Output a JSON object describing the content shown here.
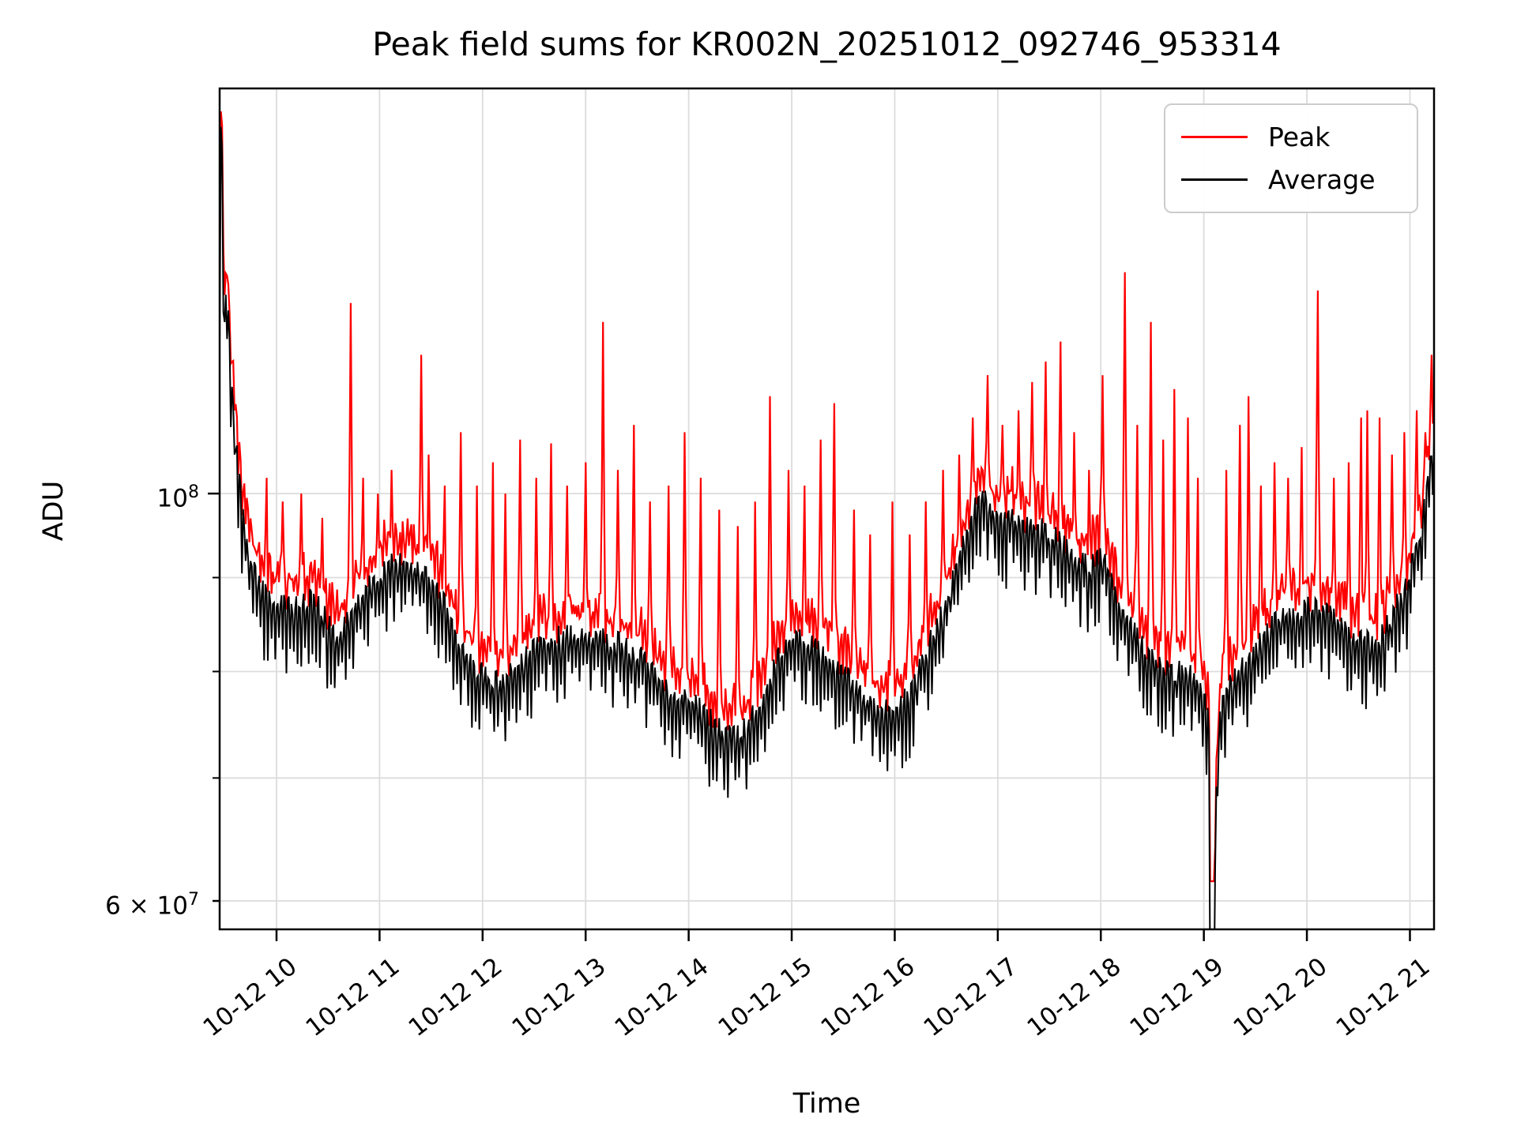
{
  "title": "Peak field sums for KR002N_20251012_092746_953314",
  "axes": {
    "xlabel": "Time",
    "ylabel": "ADU",
    "x_ticks": [
      {
        "value": 10,
        "label": "10-12 10"
      },
      {
        "value": 11,
        "label": "10-12 11"
      },
      {
        "value": 12,
        "label": "10-12 12"
      },
      {
        "value": 13,
        "label": "10-12 13"
      },
      {
        "value": 14,
        "label": "10-12 14"
      },
      {
        "value": 15,
        "label": "10-12 15"
      },
      {
        "value": 16,
        "label": "10-12 16"
      },
      {
        "value": 17,
        "label": "10-12 17"
      },
      {
        "value": 18,
        "label": "10-12 18"
      },
      {
        "value": 19,
        "label": "10-12 19"
      },
      {
        "value": 20,
        "label": "10-12 20"
      },
      {
        "value": 21,
        "label": "10-12 21"
      }
    ],
    "y_ticks": [
      {
        "value": 100000000,
        "base": "10",
        "exp": "8",
        "major": true
      },
      {
        "value": 60000000,
        "base": "6 × 10",
        "exp": "7",
        "major": false
      }
    ],
    "y_gridlines_adu": [
      100000000,
      90000000,
      80000000,
      70000000,
      60000000
    ],
    "y_minor_tick_values": [
      90000000,
      80000000,
      70000000,
      60000000
    ],
    "grid_color": "#dcdcdc",
    "spine_color": "#000000"
  },
  "legend": {
    "position": "upper right",
    "entries": [
      {
        "label": "Peak",
        "color": "#ff0000"
      },
      {
        "label": "Average",
        "color": "#000000"
      }
    ]
  },
  "chart_data": {
    "type": "line",
    "title": "Peak field sums for KR002N_20251012_092746_953314",
    "xlabel": "Time",
    "ylabel": "ADU",
    "y_scale": "log",
    "x_unit": "hours of day on 10-12",
    "x_range_hours": [
      9.448,
      21.234
    ],
    "y_range_adu": [
      57900000,
      166200000
    ],
    "series_names": [
      "Peak",
      "Average"
    ],
    "average_baseline_e7": [
      [
        9.448,
        13.2
      ],
      [
        9.465,
        17.0
      ],
      [
        9.49,
        12.5
      ],
      [
        9.52,
        13.4
      ],
      [
        9.555,
        12.0
      ],
      [
        9.6,
        10.9
      ],
      [
        9.66,
        10.0
      ],
      [
        9.73,
        9.4
      ],
      [
        9.82,
        9.05
      ],
      [
        9.95,
        8.85
      ],
      [
        10.1,
        8.8
      ],
      [
        10.25,
        8.85
      ],
      [
        10.4,
        8.9
      ],
      [
        10.5,
        8.6
      ],
      [
        10.6,
        8.5
      ],
      [
        10.72,
        8.7
      ],
      [
        10.85,
        8.95
      ],
      [
        11.0,
        9.2
      ],
      [
        11.15,
        9.3
      ],
      [
        11.3,
        9.25
      ],
      [
        11.45,
        9.15
      ],
      [
        11.6,
        8.9
      ],
      [
        11.75,
        8.5
      ],
      [
        11.9,
        8.2
      ],
      [
        12.05,
        8.05
      ],
      [
        12.2,
        8.0
      ],
      [
        12.35,
        8.2
      ],
      [
        12.5,
        8.35
      ],
      [
        12.65,
        8.45
      ],
      [
        12.8,
        8.5
      ],
      [
        13.0,
        8.5
      ],
      [
        13.2,
        8.45
      ],
      [
        13.35,
        8.4
      ],
      [
        13.5,
        8.3
      ],
      [
        13.65,
        8.15
      ],
      [
        13.8,
        7.95
      ],
      [
        13.95,
        7.9
      ],
      [
        14.1,
        7.75
      ],
      [
        14.25,
        7.6
      ],
      [
        14.4,
        7.5
      ],
      [
        14.55,
        7.55
      ],
      [
        14.7,
        7.8
      ],
      [
        14.85,
        8.2
      ],
      [
        15.0,
        8.5
      ],
      [
        15.1,
        8.45
      ],
      [
        15.25,
        8.35
      ],
      [
        15.4,
        8.2
      ],
      [
        15.55,
        8.05
      ],
      [
        15.7,
        7.9
      ],
      [
        15.85,
        7.75
      ],
      [
        16.0,
        7.75
      ],
      [
        16.15,
        7.9
      ],
      [
        16.3,
        8.3
      ],
      [
        16.45,
        8.7
      ],
      [
        16.6,
        9.2
      ],
      [
        16.75,
        9.9
      ],
      [
        16.85,
        10.1
      ],
      [
        16.95,
        9.9
      ],
      [
        17.05,
        9.75
      ],
      [
        17.15,
        9.9
      ],
      [
        17.3,
        9.7
      ],
      [
        17.45,
        9.7
      ],
      [
        17.6,
        9.55
      ],
      [
        17.75,
        9.35
      ],
      [
        17.9,
        9.25
      ],
      [
        18.0,
        9.4
      ],
      [
        18.1,
        9.1
      ],
      [
        18.25,
        8.7
      ],
      [
        18.4,
        8.4
      ],
      [
        18.55,
        8.2
      ],
      [
        18.7,
        8.1
      ],
      [
        18.8,
        8.2
      ],
      [
        18.9,
        8.05
      ],
      [
        19.0,
        7.9
      ],
      [
        19.05,
        7.6
      ],
      [
        19.065,
        5.3
      ],
      [
        19.09,
        5.2
      ],
      [
        19.12,
        6.9
      ],
      [
        19.16,
        7.8
      ],
      [
        19.3,
        8.05
      ],
      [
        19.45,
        8.25
      ],
      [
        19.6,
        8.5
      ],
      [
        19.75,
        8.7
      ],
      [
        19.9,
        8.75
      ],
      [
        20.05,
        8.8
      ],
      [
        20.2,
        8.75
      ],
      [
        20.35,
        8.55
      ],
      [
        20.5,
        8.45
      ],
      [
        20.65,
        8.4
      ],
      [
        20.8,
        8.65
      ],
      [
        20.95,
        9.0
      ],
      [
        21.05,
        9.4
      ],
      [
        21.12,
        9.8
      ],
      [
        21.18,
        10.3
      ],
      [
        21.22,
        10.9
      ]
    ],
    "peak_spikes_e7": [
      [
        9.9,
        10.2
      ],
      [
        10.06,
        9.9
      ],
      [
        10.24,
        10.0
      ],
      [
        10.45,
        9.7
      ],
      [
        10.72,
        12.7
      ],
      [
        10.84,
        10.2
      ],
      [
        10.98,
        10.0
      ],
      [
        11.12,
        10.3
      ],
      [
        11.4,
        11.9
      ],
      [
        11.48,
        10.5
      ],
      [
        11.63,
        10.1
      ],
      [
        11.79,
        10.8
      ],
      [
        11.95,
        10.1
      ],
      [
        12.1,
        10.4
      ],
      [
        12.22,
        10.0
      ],
      [
        12.36,
        10.7
      ],
      [
        12.52,
        10.2
      ],
      [
        12.67,
        10.65
      ],
      [
        12.82,
        10.1
      ],
      [
        13.0,
        10.4
      ],
      [
        13.17,
        12.4
      ],
      [
        13.31,
        10.3
      ],
      [
        13.47,
        10.9
      ],
      [
        13.62,
        9.9
      ],
      [
        13.8,
        10.1
      ],
      [
        13.96,
        10.8
      ],
      [
        14.12,
        10.2
      ],
      [
        14.3,
        9.8
      ],
      [
        14.48,
        9.6
      ],
      [
        14.65,
        9.9
      ],
      [
        14.79,
        11.3
      ],
      [
        14.97,
        10.3
      ],
      [
        15.13,
        10.1
      ],
      [
        15.28,
        10.7
      ],
      [
        15.41,
        11.2
      ],
      [
        15.6,
        9.8
      ],
      [
        15.76,
        9.5
      ],
      [
        15.98,
        9.9
      ],
      [
        16.14,
        9.5
      ],
      [
        16.3,
        9.9
      ],
      [
        16.47,
        10.3
      ],
      [
        16.62,
        10.5
      ],
      [
        16.76,
        11.0
      ],
      [
        16.9,
        11.6
      ],
      [
        17.05,
        10.9
      ],
      [
        17.2,
        11.1
      ],
      [
        17.33,
        11.5
      ],
      [
        17.46,
        11.8
      ],
      [
        17.61,
        12.1
      ],
      [
        17.74,
        10.8
      ],
      [
        17.88,
        10.3
      ],
      [
        18.02,
        11.6
      ],
      [
        18.23,
        13.2
      ],
      [
        18.35,
        10.9
      ],
      [
        18.48,
        12.4
      ],
      [
        18.6,
        10.7
      ],
      [
        18.71,
        11.4
      ],
      [
        18.84,
        11.0
      ],
      [
        18.94,
        10.2
      ],
      [
        19.22,
        10.3
      ],
      [
        19.35,
        10.9
      ],
      [
        19.43,
        11.3
      ],
      [
        19.55,
        10.1
      ],
      [
        19.68,
        10.4
      ],
      [
        19.82,
        10.2
      ],
      [
        19.95,
        10.6
      ],
      [
        20.1,
        12.9
      ],
      [
        20.26,
        10.2
      ],
      [
        20.4,
        10.4
      ],
      [
        20.52,
        11.0
      ],
      [
        20.59,
        11.1
      ],
      [
        20.7,
        11.0
      ],
      [
        20.82,
        10.5
      ],
      [
        20.95,
        10.8
      ],
      [
        21.07,
        11.1
      ],
      [
        21.15,
        10.8
      ],
      [
        21.21,
        11.9
      ]
    ],
    "crash": {
      "t_hours": 19.07,
      "average_min_e7": 5.2,
      "peak_min_e7": 6.15
    },
    "start_spike": {
      "t_hours": 9.465,
      "clipped_above_e7": 16.62
    },
    "noise": {
      "sample_step_hours": 0.012,
      "average_tooth_depth_frac": 0.095,
      "peak_tooth_depth_frac": 0.045,
      "peak_baseline_offset_frac": 0.018,
      "peak_up_jitter_frac": 0.035
    },
    "colors": {
      "peak": "#ff0000",
      "average": "#000000"
    }
  }
}
